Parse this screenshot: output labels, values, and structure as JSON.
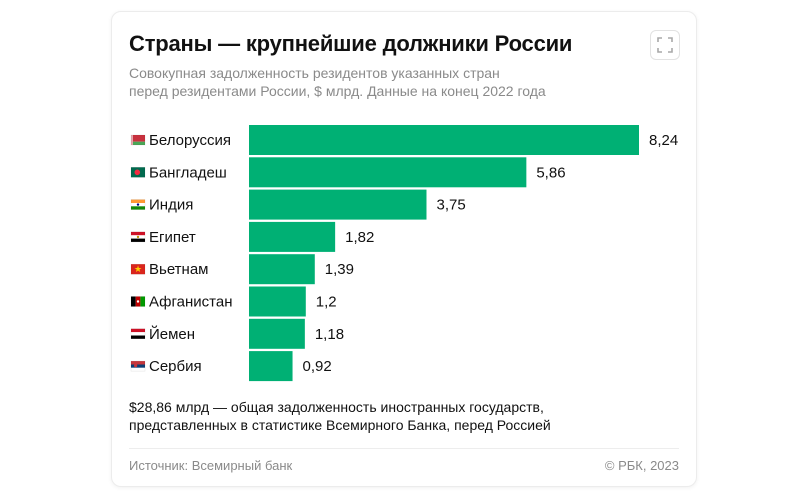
{
  "header": {
    "title": "Страны — крупнейшие должники России",
    "subtitle_lines": [
      "Совокупная задолженность резидентов указанных стран",
      "перед резидентами России, $ млрд. Данные на конец 2022 года"
    ],
    "expand_icon": "expand-icon"
  },
  "colors": {
    "bar": "#00b074",
    "text": "#111111",
    "muted": "#8a8a8a"
  },
  "chart_data": {
    "type": "bar",
    "orientation": "horizontal",
    "title": "Страны — крупнейшие должники России",
    "categories": [
      "Белоруссия",
      "Бангладеш",
      "Индия",
      "Египет",
      "Вьетнам",
      "Афганистан",
      "Йемен",
      "Сербия"
    ],
    "values": [
      8.24,
      5.86,
      3.75,
      1.82,
      1.39,
      1.2,
      1.18,
      0.92
    ],
    "value_labels": [
      "8,24",
      "5,86",
      "3,75",
      "1,82",
      "1,39",
      "1,2",
      "1,18",
      "0,92"
    ],
    "flags": [
      "belarus-flag-icon",
      "bangladesh-flag-icon",
      "india-flag-icon",
      "egypt-flag-icon",
      "vietnam-flag-icon",
      "afghanistan-flag-icon",
      "yemen-flag-icon",
      "serbia-flag-icon"
    ],
    "xlim": [
      0,
      8.24
    ],
    "grid": false,
    "legend": "none"
  },
  "footer": {
    "note_lines": [
      "$28,86 млрд — общая задолженность иностранных государств,",
      "представленных в статистике Всемирного Банка, перед Россией"
    ],
    "source": "Источник: Всемирный банк",
    "copyright": "© РБК, 2023"
  }
}
